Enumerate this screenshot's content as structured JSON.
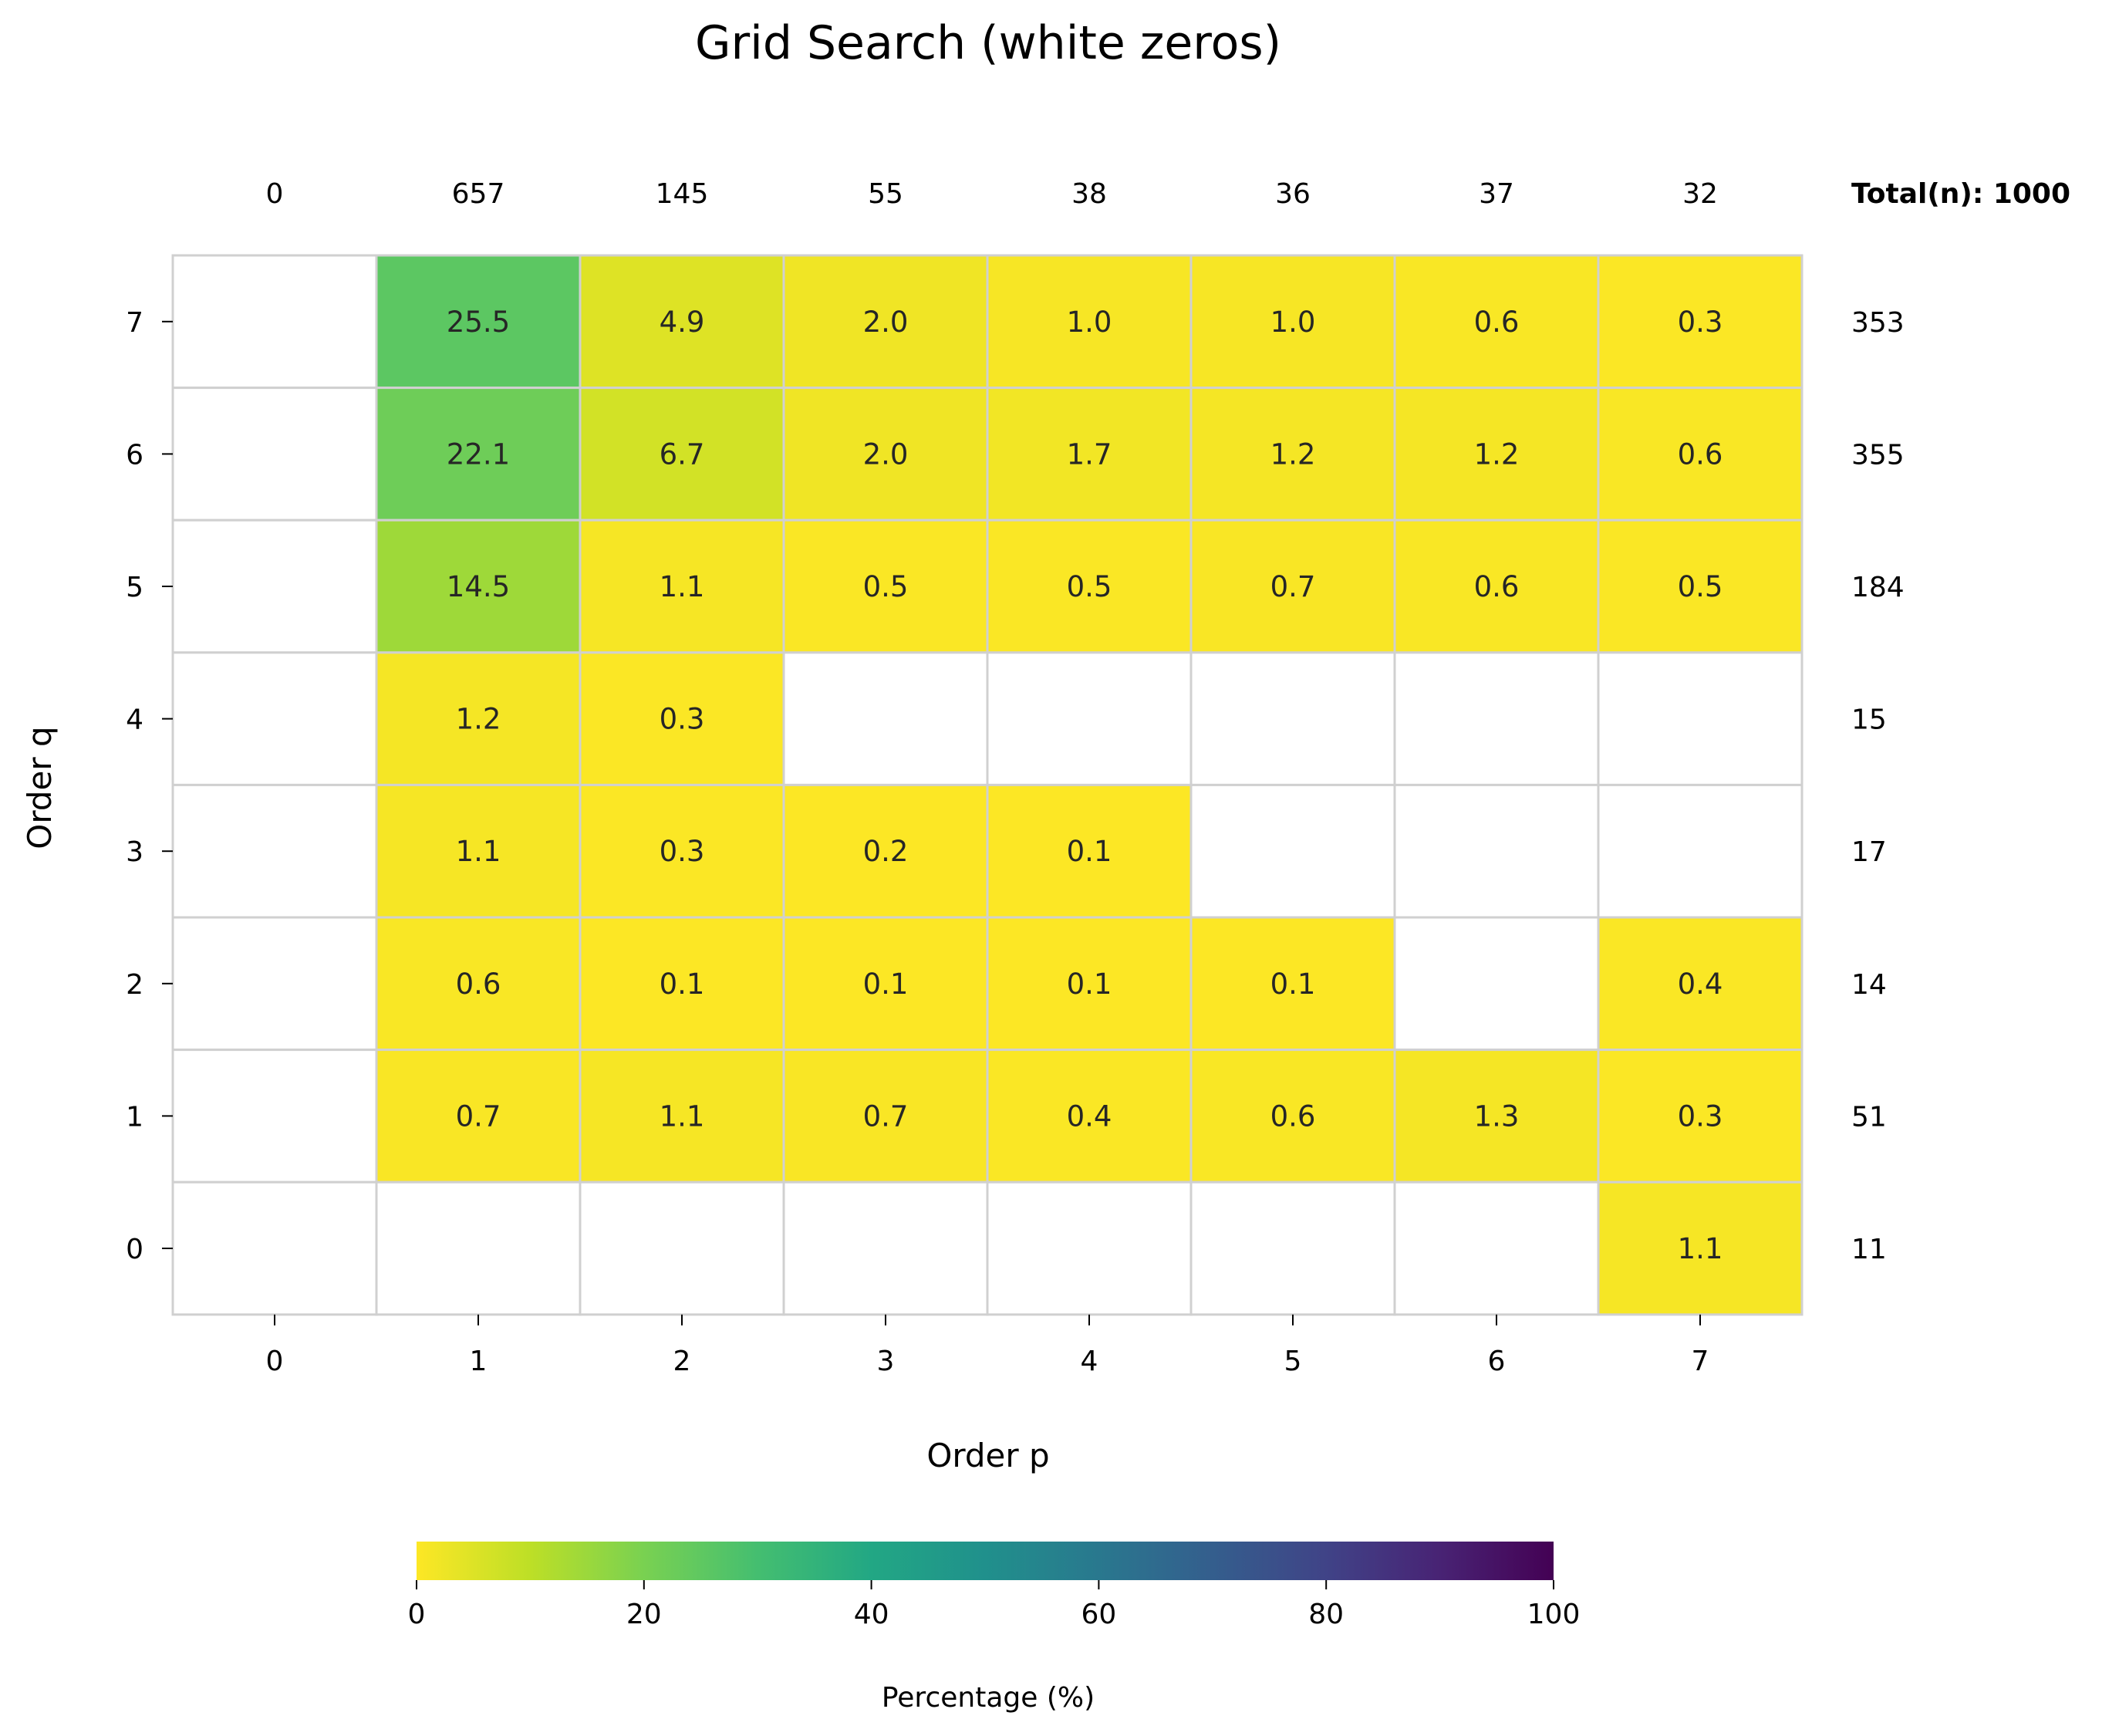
{
  "chart_data": {
    "type": "heatmap",
    "title": "Grid Search (white zeros)",
    "xlabel": "Order p",
    "ylabel": "Order q",
    "x_categories": [
      "0",
      "1",
      "2",
      "3",
      "4",
      "5",
      "6",
      "7"
    ],
    "y_categories": [
      "7",
      "6",
      "5",
      "4",
      "3",
      "2",
      "1",
      "0"
    ],
    "values": [
      [
        0,
        25.5,
        4.9,
        2.0,
        1.0,
        1.0,
        0.6,
        0.3
      ],
      [
        0,
        22.1,
        6.7,
        2.0,
        1.7,
        1.2,
        1.2,
        0.6
      ],
      [
        0,
        14.5,
        1.1,
        0.5,
        0.5,
        0.7,
        0.6,
        0.5
      ],
      [
        0,
        1.2,
        0.3,
        0,
        0,
        0,
        0,
        0
      ],
      [
        0,
        1.1,
        0.3,
        0.2,
        0.1,
        0,
        0,
        0
      ],
      [
        0,
        0.6,
        0.1,
        0.1,
        0.1,
        0.1,
        0,
        0.4
      ],
      [
        0,
        0.7,
        1.1,
        0.7,
        0.4,
        0.6,
        1.3,
        0.3
      ],
      [
        0,
        0,
        0,
        0,
        0,
        0,
        0,
        1.1
      ]
    ],
    "zero_color": "#ffffff",
    "column_totals": [
      "0",
      "657",
      "145",
      "55",
      "38",
      "36",
      "37",
      "32"
    ],
    "row_totals": [
      "353",
      "355",
      "184",
      "15",
      "17",
      "14",
      "51",
      "11"
    ],
    "total_label": "Total(n): 1000",
    "colorbar": {
      "label": "Percentage (%)",
      "range": [
        0,
        100
      ],
      "ticks": [
        "0",
        "20",
        "40",
        "60",
        "80",
        "100"
      ],
      "colormap": "viridis_r"
    },
    "grid_color": "#d0d0d0"
  }
}
